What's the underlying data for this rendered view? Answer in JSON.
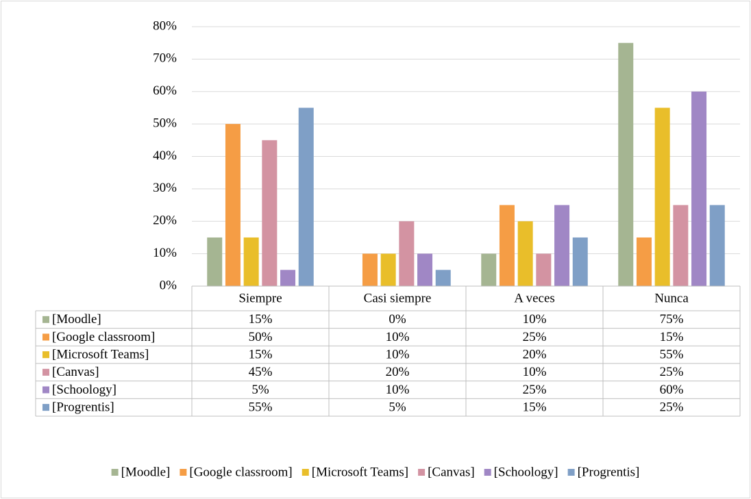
{
  "chart_data": {
    "type": "bar",
    "categories": [
      "Siempre",
      "Casi siempre",
      "A veces",
      "Nunca"
    ],
    "series": [
      {
        "name": "[Moodle]",
        "color": "#a5b592",
        "values": [
          15,
          0,
          10,
          75
        ],
        "value_labels": [
          "15%",
          "0%",
          "10%",
          "75%"
        ]
      },
      {
        "name": "[Google classroom]",
        "color": "#f59d45",
        "values": [
          50,
          10,
          25,
          15
        ],
        "value_labels": [
          "50%",
          "10%",
          "25%",
          "15%"
        ]
      },
      {
        "name": "[Microsoft Teams]",
        "color": "#e9be2a",
        "values": [
          15,
          10,
          20,
          55
        ],
        "value_labels": [
          "15%",
          "10%",
          "20%",
          "55%"
        ]
      },
      {
        "name": "[Canvas]",
        "color": "#d393a2",
        "values": [
          45,
          20,
          10,
          25
        ],
        "value_labels": [
          "45%",
          "20%",
          "10%",
          "25%"
        ]
      },
      {
        "name": "[Schoology]",
        "color": "#a087c5",
        "values": [
          5,
          10,
          25,
          60
        ],
        "value_labels": [
          "5%",
          "10%",
          "25%",
          "60%"
        ]
      },
      {
        "name": "[Progrentis]",
        "color": "#7f9fc6",
        "values": [
          55,
          5,
          15,
          25
        ],
        "value_labels": [
          "55%",
          "5%",
          "15%",
          "25%"
        ]
      }
    ],
    "ylim": [
      0,
      80
    ],
    "yticks": [
      {
        "value": 0,
        "label": "0%"
      },
      {
        "value": 10,
        "label": "10%"
      },
      {
        "value": 20,
        "label": "20%"
      },
      {
        "value": 30,
        "label": "30%"
      },
      {
        "value": 40,
        "label": "40%"
      },
      {
        "value": 50,
        "label": "50%"
      },
      {
        "value": 60,
        "label": "60%"
      },
      {
        "value": 70,
        "label": "70%"
      },
      {
        "value": 80,
        "label": "80%"
      }
    ],
    "grid": true,
    "legend": "bottom"
  }
}
